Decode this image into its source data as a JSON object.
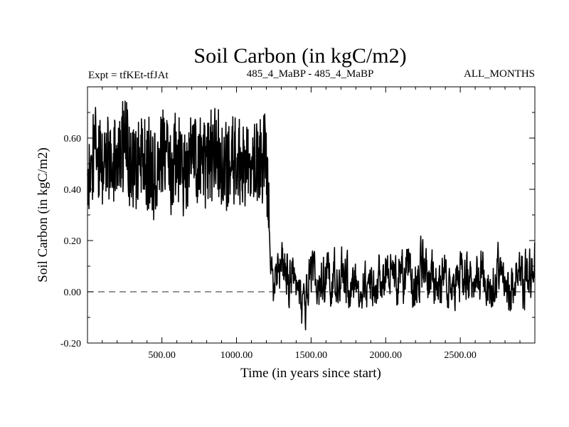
{
  "chart_data": {
    "type": "line",
    "title": "Soil Carbon (in kgC/m2)",
    "subtitle_left": "Expt = tfKEt-tfJAt",
    "subtitle_center": "485_4_MaBP - 485_4_MaBP",
    "subtitle_right": "ALL_MONTHS",
    "xlabel": "Time (in years since start)",
    "ylabel": "Soil Carbon (in kgC/m2)",
    "xlim": [
      1,
      3000
    ],
    "ylim": [
      -0.2,
      0.8
    ],
    "xticks": [
      500,
      1000,
      1500,
      2000,
      2500
    ],
    "xtick_labels": [
      "500.00",
      "1000.00",
      "1500.00",
      "2000.00",
      "2500.00"
    ],
    "yticks": [
      -0.2,
      0.0,
      0.2,
      0.4,
      0.6
    ],
    "ytick_labels": [
      "-0.20",
      "0.00",
      "0.20",
      "0.40",
      "0.60"
    ],
    "reference_line": {
      "y": 0.0,
      "style": "dashed"
    },
    "grid": false,
    "series": [
      {
        "color": "#000000",
        "regimes": [
          {
            "x_start": 1,
            "x_end": 1220,
            "mean": 0.5,
            "min": 0.24,
            "max": 0.77
          },
          {
            "x_start": 1230,
            "x_end": 3000,
            "mean": 0.05,
            "min": -0.17,
            "max": 0.27
          }
        ],
        "x": [
          1,
          50,
          100,
          150,
          200,
          250,
          300,
          350,
          400,
          450,
          500,
          550,
          600,
          650,
          700,
          750,
          800,
          850,
          900,
          950,
          1000,
          1050,
          1100,
          1150,
          1200,
          1215,
          1230,
          1240,
          1250,
          1300,
          1350,
          1400,
          1450,
          1500,
          1550,
          1600,
          1650,
          1700,
          1750,
          1800,
          1850,
          1900,
          1950,
          2000,
          2050,
          2100,
          2150,
          2200,
          2250,
          2300,
          2350,
          2400,
          2450,
          2500,
          2550,
          2600,
          2650,
          2700,
          2750,
          2800,
          2850,
          2900,
          2950,
          3000
        ],
        "y": [
          0.42,
          0.55,
          0.48,
          0.52,
          0.5,
          0.6,
          0.47,
          0.53,
          0.5,
          0.45,
          0.55,
          0.49,
          0.52,
          0.46,
          0.54,
          0.5,
          0.48,
          0.56,
          0.51,
          0.47,
          0.53,
          0.5,
          0.49,
          0.52,
          0.5,
          0.35,
          0.05,
          -0.01,
          0.05,
          0.1,
          0.04,
          0.02,
          -0.08,
          0.06,
          0.03,
          0.08,
          0.05,
          0.07,
          0.02,
          0.06,
          0.04,
          0.01,
          0.05,
          0.09,
          0.03,
          0.05,
          0.07,
          0.02,
          0.12,
          0.04,
          0.03,
          0.06,
          0.01,
          0.05,
          0.08,
          0.03,
          0.06,
          0.04,
          0.07,
          0.02,
          0.05,
          0.03,
          0.06,
          0.12
        ]
      }
    ]
  }
}
